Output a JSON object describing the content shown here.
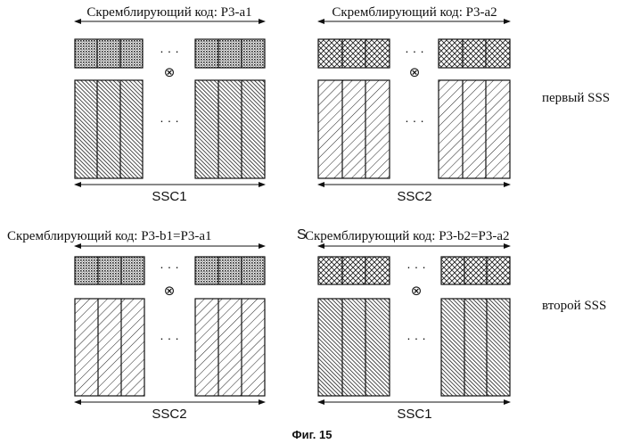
{
  "figure": {
    "caption": "Фиг. 15",
    "row_labels": [
      "первый SSS",
      "второй SSS"
    ],
    "panels": [
      {
        "code_label": "Скремблирующий код: P3-a1",
        "ssc_label": "SSC1",
        "code_pattern": "dots",
        "block_pattern": "dense-left"
      },
      {
        "code_label": "Скремблирующий код: P3-a2",
        "ssc_label": "SSC2",
        "code_pattern": "crosshatch",
        "block_pattern": "sparse-right"
      },
      {
        "code_label": "Скремблирующий код: P3-b1=P3-a1",
        "ssc_label": "SSC2",
        "code_pattern": "dots",
        "block_pattern": "sparse-right"
      },
      {
        "code_label": "Скремблирующий код: P3-b2=P3-a2",
        "code_prefix": "S",
        "ssc_label": "SSC1",
        "code_pattern": "crosshatch",
        "block_pattern": "dense-left"
      }
    ],
    "ellipsis": "· · ·",
    "multiply_symbol": "⊗"
  }
}
